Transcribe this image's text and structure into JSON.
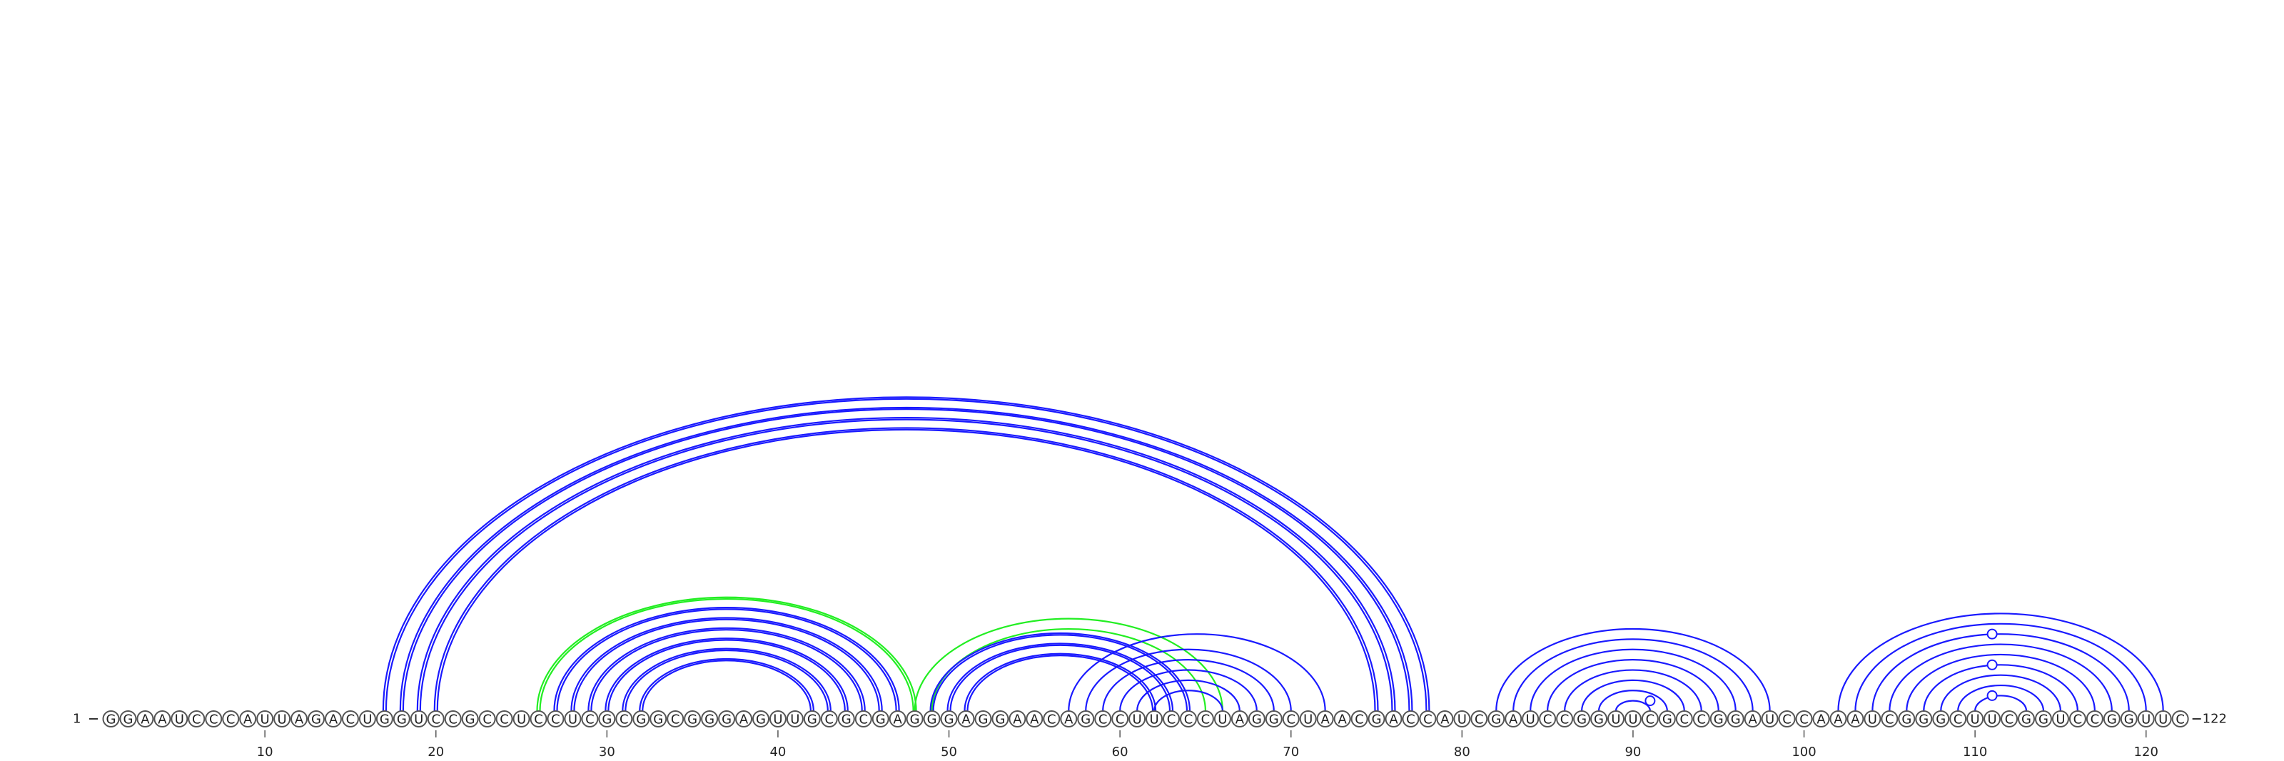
{
  "chart_data": {
    "type": "arc-diagram",
    "sequence": "GGAAUCCCAUUAGACUGGUCCGCCUCCUCGCGGCGGGAGUUGCGCGAGGGAGGAACAGCCUUCCCUAGGCUAACGACCAUCGAUCCGGUUCGCCGGAUCCAAAUCGGGCUUCGGUCCGGUUC",
    "length": 122,
    "start_label": "1",
    "end_label": "122",
    "tick_positions": [
      10,
      20,
      30,
      40,
      50,
      60,
      70,
      80,
      90,
      100,
      110,
      120
    ],
    "tick_labels": [
      "10",
      "20",
      "30",
      "40",
      "50",
      "60",
      "70",
      "80",
      "90",
      "100",
      "110",
      "120"
    ],
    "colors": {
      "primary": "#1a1aff",
      "alternate": "#22ee22",
      "circle_stroke": "#555555"
    },
    "arc_groups": [
      {
        "color": "primary",
        "double": true,
        "pairs": [
          [
            17,
            78
          ],
          [
            18,
            77
          ],
          [
            19,
            76
          ],
          [
            20,
            75
          ]
        ]
      },
      {
        "color": "alternate",
        "double": true,
        "pairs": [
          [
            26,
            48
          ]
        ]
      },
      {
        "color": "primary",
        "double": true,
        "pairs": [
          [
            27,
            47
          ],
          [
            28,
            46
          ],
          [
            29,
            45
          ],
          [
            30,
            44
          ],
          [
            31,
            43
          ],
          [
            32,
            42
          ]
        ]
      },
      {
        "color": "alternate",
        "double": false,
        "pairs": [
          [
            48,
            66
          ],
          [
            49,
            65
          ]
        ]
      },
      {
        "color": "primary",
        "double": true,
        "pairs": [
          [
            49,
            64
          ],
          [
            50,
            63
          ],
          [
            51,
            62
          ]
        ]
      },
      {
        "color": "primary",
        "double": false,
        "pairs": [
          [
            57,
            72
          ],
          [
            58,
            70
          ],
          [
            59,
            69
          ],
          [
            60,
            68
          ],
          [
            61,
            67
          ],
          [
            62,
            66
          ]
        ]
      },
      {
        "color": "primary",
        "double": false,
        "pairs": [
          [
            82,
            98
          ],
          [
            83,
            97
          ],
          [
            84,
            96
          ],
          [
            85,
            95
          ],
          [
            86,
            94
          ],
          [
            87,
            93
          ],
          [
            88,
            92
          ],
          [
            89,
            91
          ]
        ]
      },
      {
        "color": "primary",
        "double": false,
        "pairs": [
          [
            102,
            121
          ],
          [
            103,
            120
          ],
          [
            104,
            119
          ],
          [
            105,
            118
          ],
          [
            106,
            117
          ],
          [
            107,
            116
          ],
          [
            108,
            115
          ],
          [
            109,
            114
          ],
          [
            110,
            113
          ]
        ]
      }
    ],
    "arc_markers": [
      [
        91,
        89,
        91
      ],
      [
        111,
        110,
        113
      ],
      [
        111,
        107,
        116
      ],
      [
        111,
        104,
        119
      ]
    ]
  }
}
